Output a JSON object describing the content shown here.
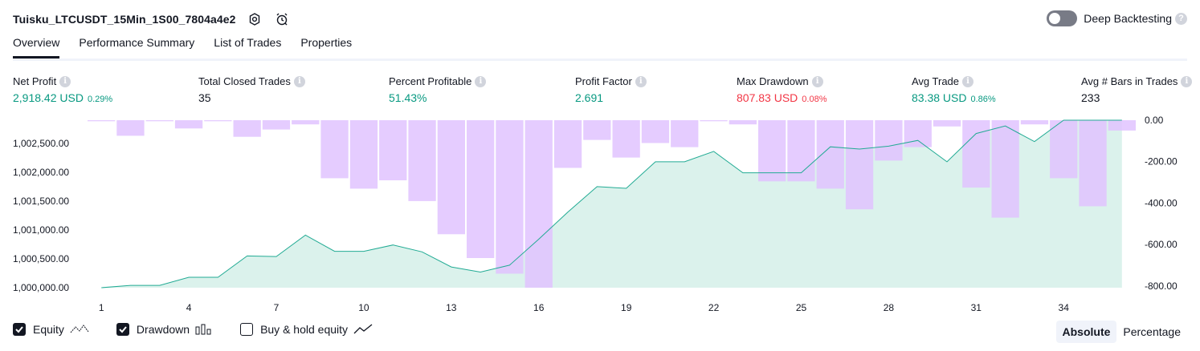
{
  "header": {
    "title": "Tuisku_LTCUSDT_15Min_1S00_7804a4e2",
    "deep_backtesting_label": "Deep Backtesting"
  },
  "tabs": [
    {
      "label": "Overview",
      "active": true
    },
    {
      "label": "Performance Summary",
      "active": false
    },
    {
      "label": "List of Trades",
      "active": false
    },
    {
      "label": "Properties",
      "active": false
    }
  ],
  "metrics": [
    {
      "label": "Net Profit",
      "value": "2,918.42 USD",
      "pct": "0.29%",
      "color": "green"
    },
    {
      "label": "Total Closed Trades",
      "value": "35",
      "pct": "",
      "color": "dark"
    },
    {
      "label": "Percent Profitable",
      "value": "51.43%",
      "pct": "",
      "color": "green"
    },
    {
      "label": "Profit Factor",
      "value": "2.691",
      "pct": "",
      "color": "green"
    },
    {
      "label": "Max Drawdown",
      "value": "807.83 USD",
      "pct": "0.08%",
      "color": "red"
    },
    {
      "label": "Avg Trade",
      "value": "83.38 USD",
      "pct": "0.86%",
      "color": "green"
    },
    {
      "label": "Avg # Bars in Trades",
      "value": "233",
      "pct": "",
      "color": "dark"
    }
  ],
  "chart_data": {
    "type": "line",
    "x": [
      1,
      2,
      3,
      4,
      5,
      6,
      7,
      8,
      9,
      10,
      11,
      12,
      13,
      14,
      15,
      16,
      17,
      18,
      19,
      20,
      21,
      22,
      23,
      24,
      25,
      26,
      27,
      28,
      29,
      30,
      31,
      32,
      33,
      34,
      35,
      36
    ],
    "x_tick_labels": [
      "1",
      "4",
      "7",
      "10",
      "13",
      "16",
      "19",
      "22",
      "25",
      "28",
      "31",
      "34"
    ],
    "left_axis": {
      "ticks": [
        "1,000,000.00",
        "1,000,500.00",
        "1,001,000.00",
        "1,001,500.00",
        "1,002,000.00",
        "1,002,500.00"
      ],
      "ylim": [
        1000000,
        1002900
      ]
    },
    "right_axis": {
      "ticks": [
        "0.00",
        "-200.00",
        "-400.00",
        "-600.00",
        "-800.00"
      ],
      "ylim": [
        -807.83,
        0
      ]
    },
    "series": [
      {
        "name": "Equity",
        "axis": "left",
        "values": [
          1000000,
          1000040,
          1000040,
          1000180,
          1000180,
          1000550,
          1000540,
          1000910,
          1000630,
          1000630,
          1000740,
          1000620,
          1000360,
          1000270,
          1000390,
          1000840,
          1001310,
          1001750,
          1001720,
          1002180,
          1002180,
          1002360,
          1001990,
          1001990,
          1001990,
          1002440,
          1002400,
          1002450,
          1002550,
          1002180,
          1002670,
          1002800,
          1002530,
          1002900,
          1002900,
          1002900
        ]
      },
      {
        "name": "Drawdown",
        "axis": "right",
        "values": [
          -5,
          -75,
          -5,
          -40,
          -5,
          -80,
          -45,
          -20,
          -280,
          -330,
          -290,
          -390,
          -550,
          -665,
          -740,
          -807.83,
          -230,
          -95,
          -180,
          -110,
          -130,
          -5,
          -20,
          -295,
          -295,
          -330,
          -430,
          -195,
          -130,
          -30,
          -325,
          -470,
          -20,
          -280,
          -415,
          -50
        ]
      }
    ],
    "legend": [
      {
        "label": "Equity",
        "checked": true
      },
      {
        "label": "Drawdown",
        "checked": true
      },
      {
        "label": "Buy & hold equity",
        "checked": false
      }
    ]
  },
  "view_modes": [
    {
      "label": "Absolute",
      "active": true
    },
    {
      "label": "Percentage",
      "active": false
    }
  ],
  "colors": {
    "equity_line": "#22ab94",
    "equity_fill": "#cfeee6",
    "drawdown_bar": "#e1c3ff",
    "green": "#089981",
    "red": "#f23645"
  }
}
